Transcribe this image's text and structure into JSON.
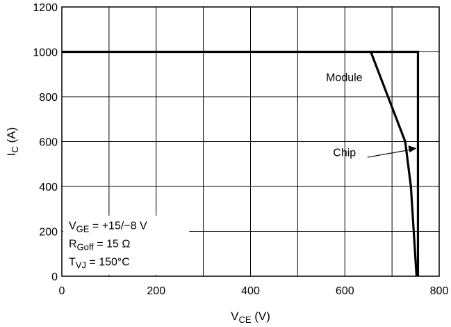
{
  "chart_data": {
    "type": "line",
    "title": "",
    "xlabel": {
      "main": "V",
      "sub": "CE",
      "unit": " (V)"
    },
    "ylabel": {
      "main": "I",
      "sub": "C",
      "unit": " (A)"
    },
    "xlim": [
      0,
      800
    ],
    "ylim": [
      0,
      1200
    ],
    "xticks": [
      0,
      200,
      400,
      600,
      800
    ],
    "yticks": [
      0,
      200,
      400,
      600,
      800,
      1000,
      1200
    ],
    "grid": true,
    "series": [
      {
        "name": "Chip",
        "points": [
          [
            0,
            1000
          ],
          [
            755,
            1000
          ],
          [
            755,
            0
          ]
        ]
      },
      {
        "name": "Module",
        "points": [
          [
            655,
            1000
          ],
          [
            728,
            600
          ],
          [
            740,
            400
          ],
          [
            752,
            0
          ]
        ]
      }
    ],
    "annotations": [
      {
        "text": "Module",
        "target": [
          690,
          825
        ]
      },
      {
        "text": "Chip",
        "target": [
          755,
          570
        ]
      }
    ],
    "conditions": [
      {
        "main": "V",
        "sub": "GE",
        "rest": " = +15/−8 V"
      },
      {
        "main": "R",
        "sub": "Goff",
        "rest": " = 15 Ω"
      },
      {
        "main": "T",
        "sub": "VJ",
        "rest": " = 150°C"
      }
    ]
  }
}
